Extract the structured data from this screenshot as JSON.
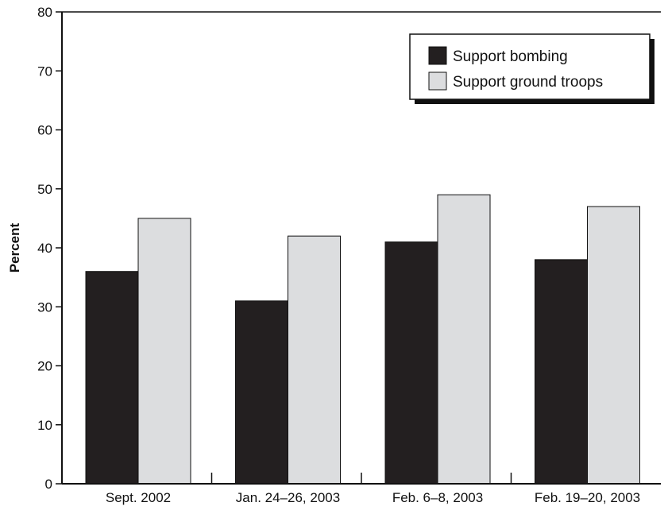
{
  "chart_data": {
    "type": "bar",
    "ylabel": "Percent",
    "xlabel": "",
    "ylim": [
      0,
      80
    ],
    "yticks": [
      0,
      10,
      20,
      30,
      40,
      50,
      60,
      70,
      80
    ],
    "categories": [
      "Sept. 2002",
      "Jan. 24–26, 2003",
      "Feb. 6–8, 2003",
      "Feb. 19–20, 2003"
    ],
    "series": [
      {
        "name": "Support bombing",
        "values": [
          36,
          31,
          41,
          38
        ],
        "color": "#231f20"
      },
      {
        "name": "Support ground troops",
        "values": [
          45,
          42,
          49,
          47
        ],
        "color": "#dcdddf"
      }
    ],
    "legend_position": "top-right",
    "grid": false
  }
}
